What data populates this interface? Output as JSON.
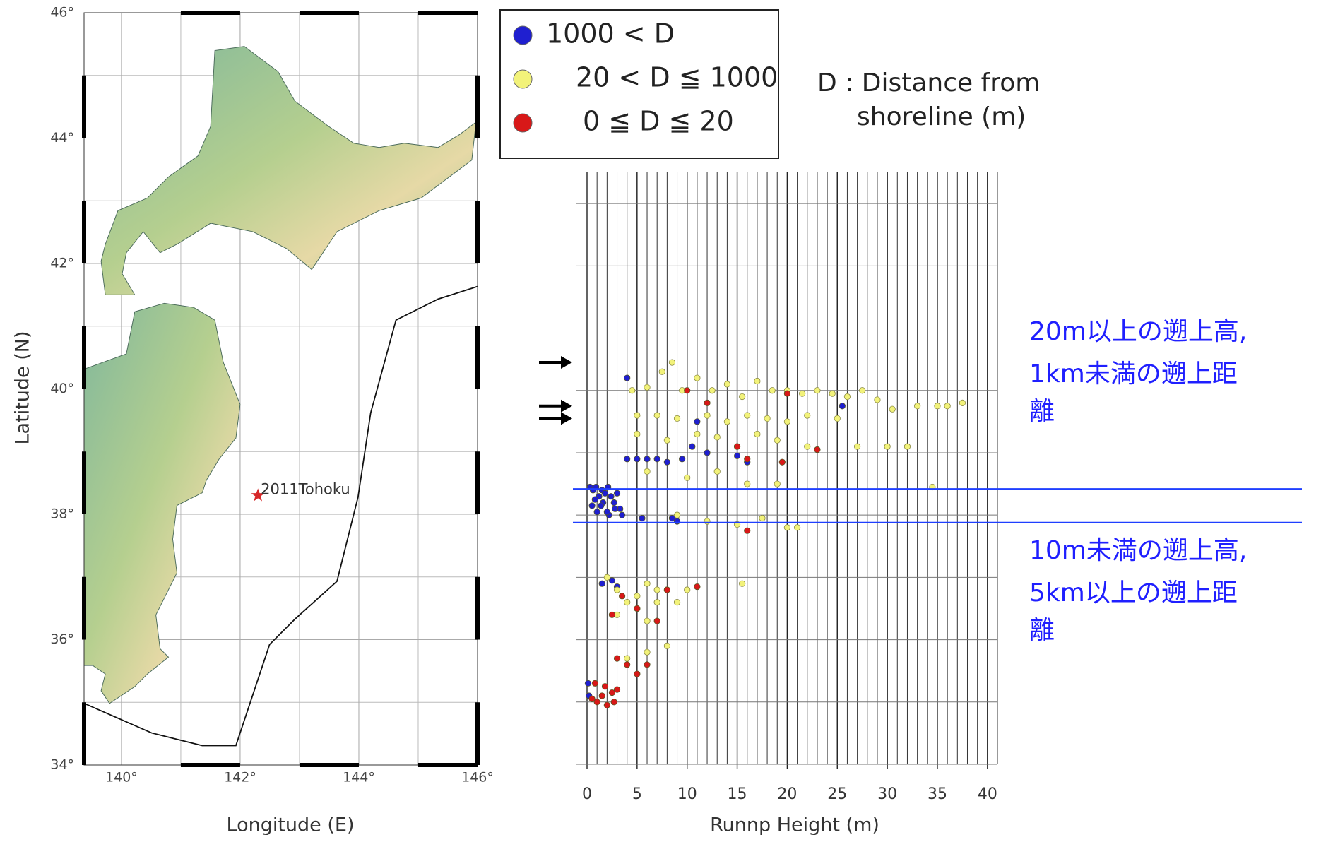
{
  "chart_data": [
    {
      "type": "map",
      "xlabel": "Longitude (E)",
      "ylabel": "Latitude (N)",
      "xlim": [
        139.37,
        146
      ],
      "ylim": [
        34,
        46
      ],
      "xticks": [
        {
          "value": 140,
          "label": "140°"
        },
        {
          "value": 142,
          "label": "142°"
        },
        {
          "value": 144,
          "label": "144°"
        },
        {
          "value": 146,
          "label": "146°"
        }
      ],
      "yticks": [
        {
          "value": 34,
          "label": "34°"
        },
        {
          "value": 36,
          "label": "36°"
        },
        {
          "value": 38,
          "label": "38°"
        },
        {
          "value": 40,
          "label": "40°"
        },
        {
          "value": 42,
          "label": "42°"
        },
        {
          "value": 44,
          "label": "44°"
        },
        {
          "value": 46,
          "label": "46°"
        }
      ],
      "grid": true,
      "epicenter": {
        "label": "2011Tohoku",
        "lon": 142.3,
        "lat": 38.3,
        "color": "#d62728"
      }
    },
    {
      "type": "scatter",
      "xlabel": "Runnp Height (m)",
      "xlim": [
        0,
        41
      ],
      "ylim": [
        34,
        43.5
      ],
      "xticks": [
        0,
        5,
        10,
        15,
        20,
        25,
        30,
        35,
        40
      ],
      "yticks": [
        34,
        35,
        36,
        37,
        38,
        39,
        40,
        41,
        42,
        43
      ],
      "ytick_labels": false,
      "grid": true,
      "series": [
        {
          "name": "1000 < D",
          "color": "#1f1fd0",
          "x": [
            0.3,
            0.6,
            0.9,
            1.2,
            1.5,
            1.8,
            2.1,
            2.4,
            2.7,
            3.0,
            3.3,
            0.5,
            1.0,
            1.6,
            2.2,
            2.8,
            3.5,
            0.8,
            1.4,
            2.0,
            4.0,
            5.0,
            6.0,
            7.0,
            8.0,
            9.5,
            5.5,
            8.5,
            9.0,
            1.5,
            2.5,
            3.0,
            0.1,
            0.2,
            4.0,
            10.5,
            12.0,
            11.0,
            25.5,
            15.0,
            16.0
          ],
          "values": [
            38.45,
            38.4,
            38.45,
            38.3,
            38.4,
            38.35,
            38.45,
            38.3,
            38.2,
            38.35,
            38.1,
            38.15,
            38.05,
            38.2,
            38.0,
            38.1,
            38.0,
            38.25,
            38.15,
            38.05,
            38.9,
            38.9,
            38.9,
            38.9,
            38.85,
            38.9,
            37.95,
            37.95,
            37.9,
            36.9,
            36.95,
            36.85,
            35.3,
            35.1,
            40.2,
            39.1,
            39.0,
            39.5,
            39.75,
            38.95,
            38.85
          ]
        },
        {
          "name": "20 < D ≦ 1000",
          "color": "#f2f27a",
          "x": [
            4.5,
            6,
            7.5,
            8.5,
            9.5,
            11,
            12.5,
            14,
            15.5,
            17,
            18.5,
            20,
            21.5,
            23,
            24.5,
            26,
            27.5,
            29,
            30.5,
            33,
            35,
            36,
            37.5,
            5,
            7,
            9,
            12,
            14,
            16,
            18,
            20,
            22,
            25,
            5,
            8,
            11,
            13,
            15,
            17,
            19,
            22,
            27,
            30,
            32,
            6,
            10,
            13,
            16,
            19,
            34.5,
            9,
            12,
            15,
            17.5,
            20,
            21,
            2,
            3,
            4,
            5,
            6,
            7,
            8,
            3,
            5,
            6,
            7,
            9,
            10,
            4,
            6,
            8,
            15.5
          ],
          "values": [
            40.0,
            40.05,
            40.3,
            40.45,
            40.0,
            40.2,
            40.0,
            40.1,
            39.9,
            40.15,
            40.0,
            40.0,
            39.95,
            40.0,
            39.95,
            39.9,
            40.0,
            39.85,
            39.7,
            39.75,
            39.75,
            39.75,
            39.8,
            39.6,
            39.6,
            39.55,
            39.6,
            39.5,
            39.6,
            39.55,
            39.5,
            39.6,
            39.55,
            39.3,
            39.2,
            39.3,
            39.25,
            39.1,
            39.3,
            39.2,
            39.1,
            39.1,
            39.1,
            39.1,
            38.7,
            38.6,
            38.7,
            38.5,
            38.5,
            38.45,
            38.0,
            37.9,
            37.85,
            37.95,
            37.8,
            37.8,
            37.0,
            36.8,
            36.6,
            36.7,
            36.9,
            36.8,
            36.8,
            36.4,
            36.5,
            36.3,
            36.6,
            36.6,
            36.8,
            35.7,
            35.8,
            35.9,
            36.9
          ]
        },
        {
          "name": "0 ≦ D ≦ 20",
          "color": "#d81818",
          "x": [
            0.5,
            1,
            1.5,
            2,
            2.5,
            3,
            0.8,
            1.8,
            2.7,
            3,
            4,
            5,
            6,
            5,
            7,
            2.5,
            3.5,
            8,
            11,
            10,
            12,
            15,
            16,
            19.5,
            20,
            23,
            16
          ],
          "values": [
            35.05,
            35.0,
            35.1,
            34.95,
            35.15,
            35.2,
            35.3,
            35.25,
            35.0,
            35.7,
            35.6,
            35.45,
            35.6,
            36.5,
            36.3,
            36.4,
            36.7,
            36.8,
            36.85,
            40.0,
            39.8,
            39.1,
            38.9,
            38.85,
            39.95,
            39.05,
            37.75
          ]
        }
      ],
      "note": [
        "D : Distance from",
        "shoreline (m)"
      ],
      "hlines": {
        "color": "#1f3fff",
        "values": [
          38.42,
          37.88
        ]
      },
      "arrows": [
        40.45,
        39.75,
        39.55
      ],
      "annotations": [
        {
          "color": "#1f1fff",
          "lines": [
            "20m以上の遡上高,",
            "1km未満の遡上距",
            "離"
          ]
        },
        {
          "color": "#1f1fff",
          "lines": [
            "10m未満の遡上高,",
            "5km以上の遡上距",
            "離"
          ]
        }
      ]
    }
  ]
}
